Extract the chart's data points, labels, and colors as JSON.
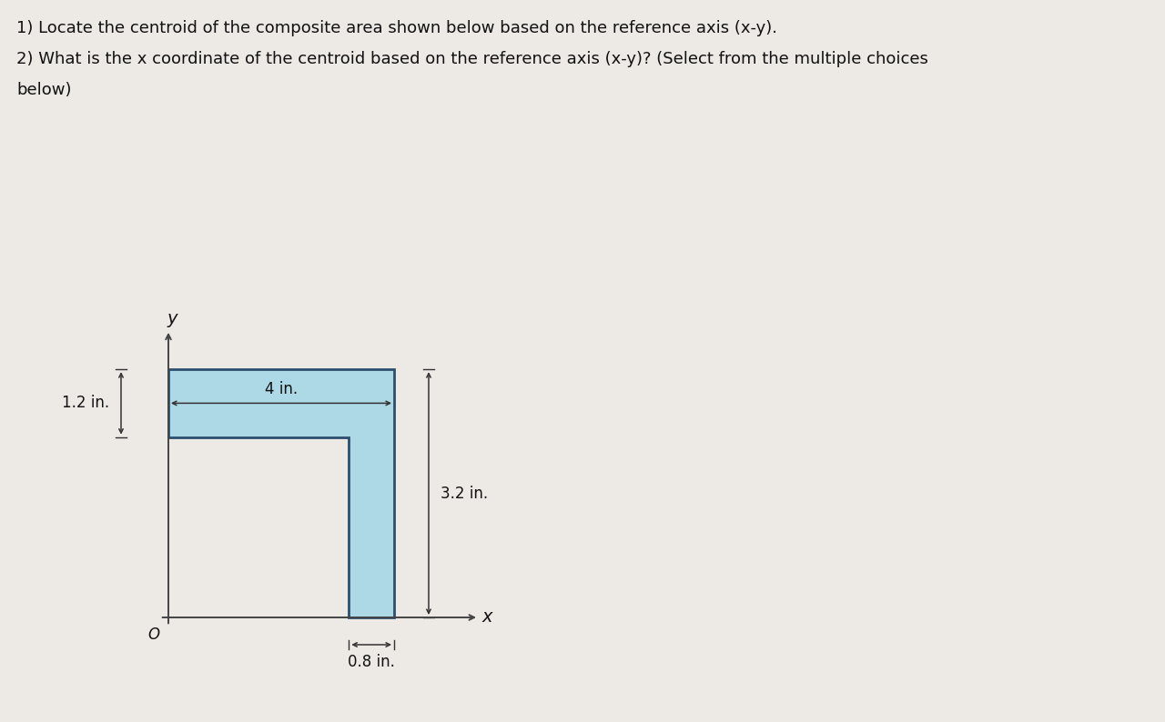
{
  "title1": "1) Locate the centroid of the composite area shown below based on the reference axis (x-y).",
  "title2": "2) What is the x coordinate of the centroid based on the reference axis (x-y)? (Select from the multiple choices",
  "title3": "below)",
  "bg_color": "#ede9e4",
  "shape_fill": "#add8e6",
  "shape_edge": "#2e4e6e",
  "shape_linewidth": 2.0,
  "dim_color": "#333333",
  "text_color": "#111111",
  "axis_color": "#444444",
  "origin_label": "O",
  "x_label": "x",
  "y_label": "y",
  "dim_4in_label": "4 in.",
  "dim_12in_label": "1.2 in.",
  "dim_32in_label": "3.2 in.",
  "dim_08in_label": "0.8 in.",
  "total_width": 4.0,
  "top_bar_height": 1.2,
  "right_bar_width": 0.8,
  "right_bar_height": 3.2,
  "font_size_text": 13,
  "font_size_labels": 12,
  "font_size_axis": 14,
  "ox_fig": 1.85,
  "oy_fig": 1.15,
  "scale": 0.62
}
